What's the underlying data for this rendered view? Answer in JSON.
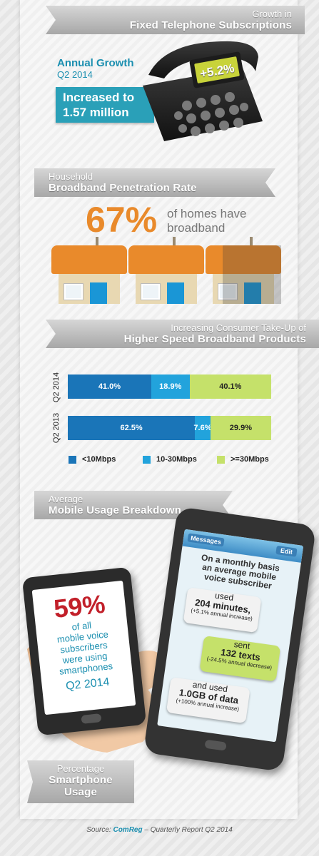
{
  "colors": {
    "orange": "#e98a2b",
    "teal": "#2aa0b8",
    "blue_dark": "#1a75b8",
    "blue_light": "#22a3dc",
    "green_light": "#c5e16a",
    "red": "#c2202a"
  },
  "section1": {
    "title_small": "Growth in",
    "title_big": "Fixed Telephone Subscriptions",
    "annual_growth": "Annual Growth",
    "period": "Q2 2014",
    "increase_line1": "Increased to",
    "increase_line2": "1.57 million",
    "display_value": "+5.2%",
    "icon": "desk-telephone-icon"
  },
  "section2": {
    "title_small": "Household",
    "title_big": "Broadband Penetration Rate",
    "percent": "67%",
    "caption_line1": "of homes have",
    "caption_line2": "broadband",
    "icon": "house-icon"
  },
  "section3": {
    "title_small": "Increasing Consumer Take-Up of",
    "title_big": "Higher Speed Broadband Products"
  },
  "chart_data": {
    "type": "bar",
    "orientation": "horizontal-stacked",
    "categories": [
      "Q2 2014",
      "Q2 2013"
    ],
    "series": [
      {
        "name": "<10Mbps",
        "values": [
          41.0,
          62.5
        ],
        "labels": [
          "41.0%",
          "62.5%"
        ],
        "color": "#1a75b8"
      },
      {
        "name": "10-30Mbps",
        "values": [
          18.9,
          7.6
        ],
        "labels": [
          "18.9%",
          "7.6%"
        ],
        "color": "#22a3dc"
      },
      {
        "name": ">=30Mbps",
        "values": [
          40.1,
          29.9
        ],
        "labels": [
          "40.1%",
          "29.9%"
        ],
        "color": "#c5e16a"
      }
    ],
    "xlim": [
      0,
      100
    ],
    "legend": "bottom"
  },
  "section4": {
    "title_small": "Average",
    "title_big": "Mobile Usage Breakdown",
    "percent": "59%",
    "desc_lines": [
      "of all",
      "mobile voice",
      "subscribers",
      "were using",
      "smartphones"
    ],
    "period": "Q2 2014",
    "messages_label": "Messages",
    "edit_label": "Edit",
    "intro_lines": [
      "On a monthly basis",
      "an average mobile",
      "voice subscriber"
    ],
    "bubbles": [
      {
        "l1": "used",
        "l2": "204 minutes,",
        "l3": "(+5.1% annual increase)"
      },
      {
        "l1": "sent",
        "l2": "132 texts",
        "l3": "(-24.5% annual decrease)"
      },
      {
        "l1": "and used",
        "l2": "1.0GB of data",
        "l3": "(+100% annual increase)"
      }
    ],
    "badge_small": "Percentage",
    "badge_big_1": "Smartphone",
    "badge_big_2": "Usage"
  },
  "source": {
    "prefix": "Source: ",
    "org": "ComReg",
    "suffix": " – Quarterly Report Q2 2014"
  }
}
